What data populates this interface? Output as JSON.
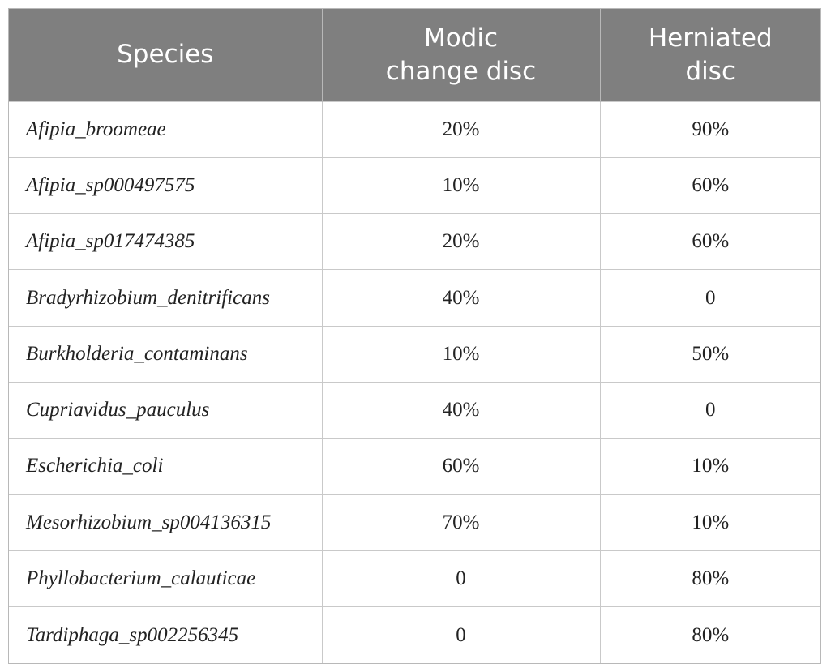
{
  "table": {
    "headers": [
      "Species",
      "Modic\nchange disc",
      "Herniated\ndisc"
    ],
    "rows": [
      {
        "species": "Afipia_broomeae",
        "modic": "20%",
        "herniated": "90%"
      },
      {
        "species": "Afipia_sp000497575",
        "modic": "10%",
        "herniated": "60%"
      },
      {
        "species": "Afipia_sp017474385",
        "modic": "20%",
        "herniated": "60%"
      },
      {
        "species": "Bradyrhizobium_denitrificans",
        "modic": "40%",
        "herniated": "0"
      },
      {
        "species": "Burkholderia_contaminans",
        "modic": "10%",
        "herniated": "50%"
      },
      {
        "species": "Cupriavidus_pauculus",
        "modic": "40%",
        "herniated": "0"
      },
      {
        "species": "Escherichia_coli",
        "modic": "60%",
        "herniated": "10%"
      },
      {
        "species": "Mesorhizobium_sp004136315",
        "modic": "70%",
        "herniated": "10%"
      },
      {
        "species": "Phyllobacterium_calauticae",
        "modic": "0",
        "herniated": "80%"
      },
      {
        "species": "Tardiphaga_sp002256345",
        "modic": "0",
        "herniated": "80%"
      }
    ]
  },
  "colors": {
    "header_background": "#7f7f7f",
    "header_text": "#ffffff",
    "grid_lines": "#c9c9c9"
  }
}
